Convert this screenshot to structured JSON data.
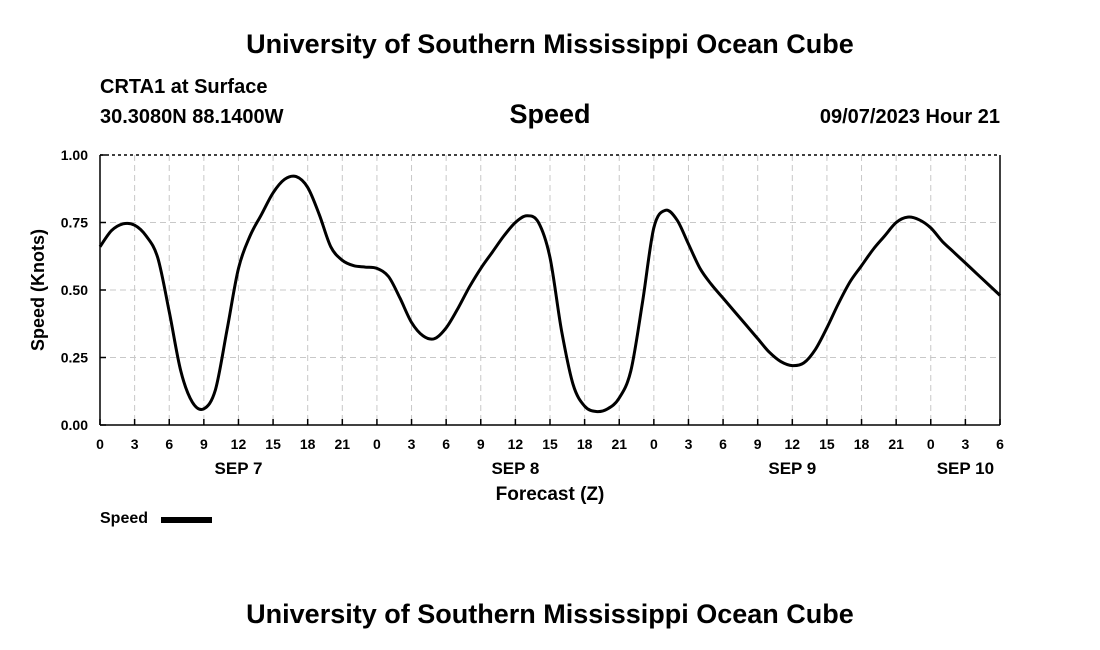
{
  "header": {
    "title": "University of Southern Mississippi Ocean Cube",
    "station": "CRTA1 at Surface",
    "coords": "30.3080N  88.1400W",
    "variable": "Speed",
    "datetime": "09/07/2023 Hour 21"
  },
  "footer": {
    "title": "University of Southern Mississippi Ocean Cube"
  },
  "legend": {
    "label": "Speed"
  },
  "chart_data": {
    "type": "line",
    "title": "Speed",
    "xlabel": "Forecast (Z)",
    "ylabel": "Speed (Knots)",
    "x_unit": "hours from Sep 7 00Z",
    "xlim": [
      0,
      78
    ],
    "ylim": [
      0,
      1
    ],
    "grid": true,
    "x_ticks": [
      0,
      3,
      6,
      9,
      12,
      15,
      18,
      21,
      24,
      27,
      30,
      33,
      36,
      39,
      42,
      45,
      48,
      51,
      54,
      57,
      60,
      63,
      66,
      69,
      72,
      75,
      78
    ],
    "x_tick_labels": [
      "0",
      "3",
      "6",
      "9",
      "12",
      "15",
      "18",
      "21",
      "0",
      "3",
      "6",
      "9",
      "12",
      "15",
      "18",
      "21",
      "0",
      "3",
      "6",
      "9",
      "12",
      "15",
      "18",
      "21",
      "0",
      "3",
      "6"
    ],
    "y_ticks": [
      0,
      0.25,
      0.5,
      0.75,
      1.0
    ],
    "y_tick_labels": [
      "0.00",
      "0.25",
      "0.50",
      "0.75",
      "1.00"
    ],
    "day_labels": [
      {
        "x": 12,
        "label": "SEP 7"
      },
      {
        "x": 36,
        "label": "SEP 8"
      },
      {
        "x": 60,
        "label": "SEP 9"
      },
      {
        "x": 75,
        "label": "SEP 10"
      }
    ],
    "series": [
      {
        "name": "Speed",
        "color": "#000000",
        "x": [
          0,
          1,
          2,
          3,
          4,
          5,
          6,
          7,
          8,
          9,
          10,
          11,
          12,
          13,
          14,
          15,
          16,
          17,
          18,
          19,
          20,
          21,
          22,
          23,
          24,
          25,
          26,
          27,
          28,
          29,
          30,
          31,
          32,
          33,
          34,
          35,
          36,
          37,
          38,
          39,
          40,
          41,
          42,
          43,
          44,
          45,
          46,
          47,
          48,
          49,
          50,
          51,
          52,
          53,
          54,
          55,
          56,
          57,
          58,
          59,
          60,
          61,
          62,
          63,
          64,
          65,
          66,
          67,
          68,
          69,
          70,
          71,
          72,
          73,
          74,
          75,
          76,
          77,
          78
        ],
        "values": [
          0.66,
          0.72,
          0.745,
          0.74,
          0.7,
          0.62,
          0.42,
          0.2,
          0.085,
          0.06,
          0.13,
          0.35,
          0.58,
          0.7,
          0.78,
          0.86,
          0.91,
          0.92,
          0.88,
          0.78,
          0.66,
          0.61,
          0.59,
          0.585,
          0.58,
          0.55,
          0.47,
          0.38,
          0.33,
          0.32,
          0.36,
          0.43,
          0.51,
          0.58,
          0.64,
          0.7,
          0.75,
          0.775,
          0.75,
          0.62,
          0.35,
          0.15,
          0.07,
          0.05,
          0.06,
          0.1,
          0.2,
          0.45,
          0.73,
          0.795,
          0.76,
          0.67,
          0.58,
          0.52,
          0.47,
          0.42,
          0.37,
          0.32,
          0.27,
          0.235,
          0.22,
          0.23,
          0.28,
          0.36,
          0.45,
          0.53,
          0.59,
          0.65,
          0.7,
          0.75,
          0.77,
          0.76,
          0.73,
          0.68,
          0.64,
          0.6,
          0.56,
          0.52,
          0.48
        ]
      }
    ]
  }
}
